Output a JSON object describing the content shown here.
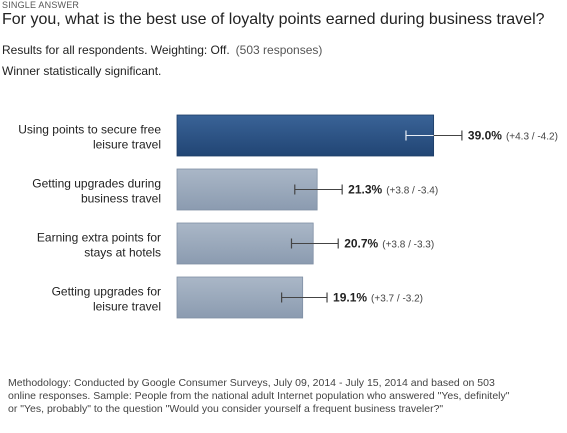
{
  "header": {
    "kind": "SINGLE ANSWER",
    "question": "For you, what is the best use of loyalty points earned during business travel?",
    "results_text": "Results for all respondents. Weighting: Off.",
    "responses_text": "(503 responses)",
    "significance_text": "Winner statistically significant."
  },
  "chart_data": {
    "type": "bar",
    "orientation": "horizontal",
    "categories": [
      [
        "Using points to secure free",
        "leisure travel"
      ],
      [
        "Getting upgrades during",
        "business travel"
      ],
      [
        "Earning extra points for",
        "stays at hotels"
      ],
      [
        "Getting upgrades for",
        "leisure travel"
      ]
    ],
    "values": [
      39.0,
      21.3,
      20.7,
      19.1
    ],
    "value_labels": [
      "39.0%",
      "21.3%",
      "20.7%",
      "19.1%"
    ],
    "error_plus": [
      4.3,
      3.8,
      3.8,
      3.7
    ],
    "error_minus": [
      4.2,
      3.4,
      3.3,
      3.2
    ],
    "error_labels": [
      "(+4.3 / -4.2)",
      "(+3.8 / -3.4)",
      "(+3.8 / -3.3)",
      "(+3.7 / -3.2)"
    ],
    "xlim": [
      0,
      100
    ],
    "grid": false,
    "colors": {
      "winner": "#2e5587",
      "other": "#9aa9bb",
      "error_bar": "#444444"
    }
  },
  "footer": {
    "methodology": "Methodology: Conducted by Google Consumer Surveys, July 09, 2014 - July 15, 2014 and based on 503 online responses. Sample: People from the national adult Internet population who answered \"Yes, definitely\" or \"Yes, probably\" to the question \"Would you consider yourself a frequent business traveler?\""
  }
}
